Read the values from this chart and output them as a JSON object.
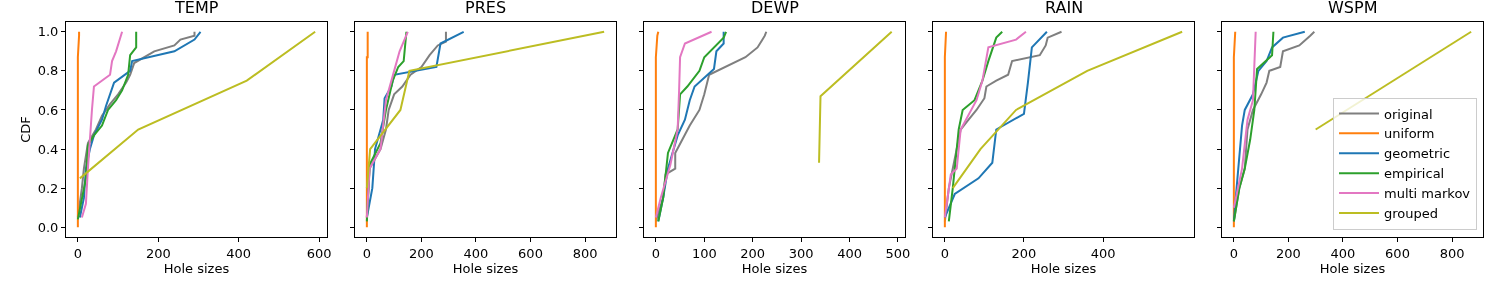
{
  "chart_data": [
    {
      "type": "line",
      "title": "TEMP",
      "xlabel": "Hole sizes",
      "ylabel": "CDF",
      "xlim": [
        -29.5,
        619.5
      ],
      "xticks": [
        0,
        200,
        400,
        600
      ],
      "ylim": [
        -0.05,
        1.05
      ],
      "yticks": [
        {
          "value": 0,
          "label": "0.0"
        },
        0.2,
        0.4,
        0.6,
        0.8,
        {
          "value": 1,
          "label": "1.0"
        }
      ],
      "series": [
        {
          "color": "#7f7f7f",
          "x": [
            0,
            10,
            15,
            25,
            45,
            60,
            80,
            100,
            120,
            130,
            140,
            190,
            240,
            255,
            290,
            290
          ],
          "values": [
            0.05,
            0.2,
            0.3,
            0.43,
            0.5,
            0.57,
            0.63,
            0.68,
            0.74,
            0.78,
            0.84,
            0.9,
            0.93,
            0.96,
            0.98,
            1.0
          ]
        },
        {
          "color": "#ff7f0e",
          "x": [
            0,
            0,
            3,
            3
          ],
          "values": [
            0,
            0.87,
            0.98,
            1.0
          ]
        },
        {
          "color": "#1f77b4",
          "x": [
            5,
            15,
            20,
            30,
            40,
            60,
            70,
            90,
            130,
            135,
            240,
            290,
            305
          ],
          "values": [
            0.05,
            0.15,
            0.3,
            0.4,
            0.47,
            0.55,
            0.62,
            0.74,
            0.8,
            0.85,
            0.9,
            0.96,
            1.0
          ]
        },
        {
          "color": "#2ca02c",
          "x": [
            0,
            20,
            25,
            40,
            60,
            75,
            95,
            110,
            125,
            130,
            145,
            145
          ],
          "values": [
            0.04,
            0.25,
            0.42,
            0.47,
            0.52,
            0.6,
            0.65,
            0.7,
            0.78,
            0.88,
            0.92,
            1.0
          ]
        },
        {
          "color": "#e377c2",
          "x": [
            10,
            20,
            25,
            30,
            35,
            40,
            80,
            85,
            95,
            110
          ],
          "values": [
            0.05,
            0.12,
            0.3,
            0.45,
            0.6,
            0.72,
            0.78,
            0.85,
            0.9,
            1.0
          ]
        },
        {
          "color": "#bcbd22",
          "x": [
            5,
            150,
            420,
            590
          ],
          "values": [
            0.25,
            0.5,
            0.75,
            1.0
          ]
        }
      ]
    },
    {
      "type": "line",
      "title": "PRES",
      "xlabel": "Hole sizes",
      "xlim": [
        -43.5,
        913.5
      ],
      "xticks": [
        0,
        200,
        400,
        600,
        800
      ],
      "ylim": [
        -0.05,
        1.05
      ],
      "yticks": [
        0,
        0.2,
        0.4,
        0.6,
        0.8,
        1
      ],
      "tick_labels": "x",
      "series": [
        {
          "color": "#7f7f7f",
          "x": [
            0,
            10,
            30,
            50,
            70,
            80,
            100,
            130,
            160,
            200,
            230,
            260,
            290,
            290
          ],
          "values": [
            0.05,
            0.3,
            0.35,
            0.4,
            0.5,
            0.6,
            0.68,
            0.72,
            0.78,
            0.82,
            0.88,
            0.93,
            0.95,
            1.0
          ]
        },
        {
          "color": "#ff7f0e",
          "x": [
            0,
            0,
            3,
            3
          ],
          "values": [
            0,
            0.87,
            0.87,
            1.0
          ]
        },
        {
          "color": "#1f77b4",
          "x": [
            0,
            20,
            30,
            60,
            65,
            90,
            100,
            255,
            270,
            355
          ],
          "values": [
            0.05,
            0.2,
            0.4,
            0.55,
            0.66,
            0.72,
            0.78,
            0.82,
            0.94,
            1.0
          ]
        },
        {
          "color": "#2ca02c",
          "x": [
            0,
            10,
            50,
            70,
            95,
            115,
            135,
            145
          ],
          "values": [
            0.03,
            0.32,
            0.43,
            0.6,
            0.75,
            0.82,
            0.85,
            1.0
          ]
        },
        {
          "color": "#e377c2",
          "x": [
            0,
            10,
            50,
            70,
            100,
            120,
            150
          ],
          "values": [
            0.05,
            0.3,
            0.4,
            0.65,
            0.8,
            0.9,
            1.0
          ]
        },
        {
          "color": "#bcbd22",
          "x": [
            0,
            12,
            123,
            156,
            870
          ],
          "values": [
            0.2,
            0.4,
            0.6,
            0.8,
            1.0
          ]
        }
      ]
    },
    {
      "type": "line",
      "title": "DEWP",
      "xlabel": "Hole sizes",
      "xlim": [
        -24.5,
        514.5
      ],
      "xticks": [
        0,
        100,
        200,
        300,
        400,
        500
      ],
      "ylim": [
        -0.05,
        1.05
      ],
      "yticks": [
        0,
        0.2,
        0.4,
        0.6,
        0.8,
        1
      ],
      "tick_labels": "x",
      "series": [
        {
          "color": "#7f7f7f",
          "x": [
            0,
            15,
            20,
            40,
            40,
            55,
            70,
            90,
            100,
            110,
            185,
            210,
            225,
            228
          ],
          "values": [
            0.03,
            0.15,
            0.27,
            0.3,
            0.38,
            0.45,
            0.52,
            0.6,
            0.68,
            0.78,
            0.87,
            0.92,
            0.98,
            1.0
          ]
        },
        {
          "color": "#ff7f0e",
          "x": [
            0,
            0,
            3,
            5
          ],
          "values": [
            0,
            0.87,
            0.98,
            1.0
          ]
        },
        {
          "color": "#1f77b4",
          "x": [
            5,
            15,
            25,
            45,
            60,
            70,
            80,
            120,
            125,
            140,
            140
          ],
          "values": [
            0.03,
            0.15,
            0.3,
            0.47,
            0.55,
            0.65,
            0.72,
            0.81,
            0.9,
            0.94,
            1.0
          ]
        },
        {
          "color": "#2ca02c",
          "x": [
            5,
            15,
            25,
            45,
            50,
            65,
            90,
            100,
            140,
            145
          ],
          "values": [
            0.03,
            0.15,
            0.38,
            0.5,
            0.68,
            0.72,
            0.8,
            0.87,
            0.97,
            1.0
          ]
        },
        {
          "color": "#e377c2",
          "x": [
            0,
            10,
            30,
            45,
            48,
            50,
            60,
            115
          ],
          "values": [
            0.05,
            0.15,
            0.32,
            0.5,
            0.7,
            0.87,
            0.94,
            1.0
          ]
        },
        {
          "color": "#bcbd22",
          "x": [
            337,
            340,
            487
          ],
          "values": [
            0.33,
            0.67,
            1.0
          ]
        }
      ]
    },
    {
      "type": "line",
      "title": "RAIN",
      "xlabel": "Hole sizes",
      "xlim": [
        -30,
        630
      ],
      "xticks": [
        0,
        200,
        400
      ],
      "ylim": [
        -0.05,
        1.05
      ],
      "yticks": [
        0,
        0.2,
        0.4,
        0.6,
        0.8,
        1
      ],
      "tick_labels": "x",
      "series": [
        {
          "color": "#7f7f7f",
          "x": [
            0,
            10,
            25,
            40,
            60,
            80,
            100,
            105,
            130,
            160,
            170,
            240,
            255,
            260,
            295
          ],
          "values": [
            0.03,
            0.2,
            0.35,
            0.5,
            0.55,
            0.6,
            0.66,
            0.72,
            0.75,
            0.78,
            0.85,
            0.88,
            0.93,
            0.97,
            1.0
          ]
        },
        {
          "color": "#ff7f0e",
          "x": [
            0,
            0,
            3
          ],
          "values": [
            0,
            0.87,
            1.0
          ]
        },
        {
          "color": "#1f77b4",
          "x": [
            0,
            25,
            85,
            120,
            130,
            200,
            210,
            220,
            258
          ],
          "values": [
            0.05,
            0.17,
            0.25,
            0.33,
            0.5,
            0.58,
            0.74,
            0.92,
            1.0
          ]
        },
        {
          "color": "#2ca02c",
          "x": [
            10,
            20,
            35,
            40,
            45,
            75,
            95,
            110,
            130,
            145
          ],
          "values": [
            0.03,
            0.2,
            0.5,
            0.55,
            0.6,
            0.65,
            0.75,
            0.85,
            0.97,
            1.0
          ]
        },
        {
          "color": "#e377c2",
          "x": [
            0,
            15,
            30,
            40,
            80,
            95,
            110,
            180,
            205
          ],
          "values": [
            0.05,
            0.27,
            0.3,
            0.5,
            0.65,
            0.75,
            0.92,
            0.96,
            1.0
          ]
        },
        {
          "color": "#bcbd22",
          "x": [
            20,
            90,
            180,
            360,
            600
          ],
          "values": [
            0.2,
            0.4,
            0.6,
            0.8,
            1.0
          ]
        }
      ]
    },
    {
      "type": "line",
      "title": "WSPM",
      "xlabel": "Hole sizes",
      "xlim": [
        -43.5,
        913.5
      ],
      "xticks": [
        0,
        200,
        400,
        600,
        800
      ],
      "ylim": [
        -0.05,
        1.05
      ],
      "yticks": [
        0,
        0.2,
        0.4,
        0.6,
        0.8,
        1
      ],
      "tick_labels": "x",
      "legend": "bottom right",
      "series": [
        {
          "name": "original",
          "color": "#7f7f7f",
          "x": [
            0,
            20,
            40,
            50,
            70,
            100,
            120,
            130,
            170,
            180,
            240,
            280,
            295
          ],
          "values": [
            0.03,
            0.2,
            0.3,
            0.5,
            0.6,
            0.68,
            0.74,
            0.8,
            0.82,
            0.9,
            0.93,
            0.98,
            1.0
          ]
        },
        {
          "name": "uniform",
          "color": "#ff7f0e",
          "x": [
            0,
            0,
            5
          ],
          "values": [
            0,
            0.87,
            1.0
          ]
        },
        {
          "name": "geometric",
          "color": "#1f77b4",
          "x": [
            0,
            10,
            30,
            40,
            70,
            90,
            120,
            140,
            180,
            260
          ],
          "values": [
            0.03,
            0.2,
            0.52,
            0.6,
            0.68,
            0.8,
            0.85,
            0.92,
            0.97,
            1.0
          ]
        },
        {
          "name": "empirical",
          "color": "#2ca02c",
          "x": [
            0,
            20,
            40,
            60,
            75,
            85,
            140,
            145
          ],
          "values": [
            0.03,
            0.2,
            0.3,
            0.45,
            0.6,
            0.81,
            0.88,
            1.0
          ]
        },
        {
          "name": "multi markov",
          "color": "#e377c2",
          "x": [
            0,
            30,
            50,
            70,
            80
          ],
          "values": [
            0.1,
            0.3,
            0.55,
            0.65,
            1.0
          ]
        },
        {
          "name": "grouped",
          "color": "#bcbd22",
          "x": [
            300,
            870
          ],
          "values": [
            0.5,
            1.0
          ]
        }
      ]
    }
  ]
}
